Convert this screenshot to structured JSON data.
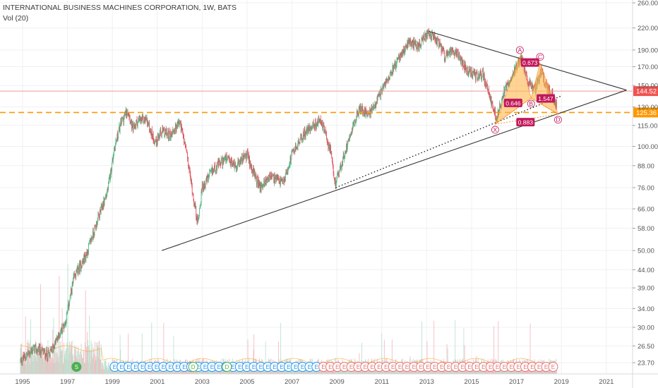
{
  "header": {
    "title": "INTERNATIONAL BUSINESS MACHINES CORPORATION, 1W, BATS",
    "volume_label": "Vol (20)"
  },
  "colors": {
    "up": "#53b987",
    "down": "#eb4d5c",
    "pattern_fill": "#ffb74d",
    "pattern_line": "#f57c00",
    "harmonic_label": "#c2185b",
    "level_orange": "#ff9800",
    "price_tag": "#ef5350",
    "support_line": "#ef9a9a",
    "trendline": "#333333",
    "earnings_badge": "#2196f3",
    "dividend_badge": "#4caf50",
    "earnings_badge_neg": "#e57373"
  },
  "chart_data": {
    "type": "candlestick",
    "scale": "log",
    "x_axis": {
      "ticks": [
        "1995",
        "1997",
        "1999",
        "2001",
        "2003",
        "2005",
        "2007",
        "2009",
        "2011",
        "2013",
        "2015",
        "2017",
        "2019",
        "2021"
      ]
    },
    "y_axis": {
      "ticks": [
        260.0,
        220.0,
        190.0,
        170.0,
        150.0,
        130.0,
        115.0,
        100.0,
        88.0,
        76.0,
        66.0,
        58.0,
        50.0,
        44.0,
        39.0,
        34.0,
        30.0,
        26.5,
        23.7
      ]
    },
    "ylim": [
      22,
      265
    ],
    "price_path": [
      [
        1994.9,
        24
      ],
      [
        1995.5,
        26
      ],
      [
        1996.2,
        25
      ],
      [
        1996.9,
        31
      ],
      [
        1997.3,
        42
      ],
      [
        1997.8,
        48
      ],
      [
        1998.3,
        60
      ],
      [
        1998.8,
        75
      ],
      [
        1999.1,
        100
      ],
      [
        1999.4,
        118
      ],
      [
        1999.7,
        128
      ],
      [
        1999.9,
        112
      ],
      [
        2000.1,
        118
      ],
      [
        2000.5,
        120
      ],
      [
        2000.9,
        103
      ],
      [
        2001.2,
        110
      ],
      [
        2001.6,
        108
      ],
      [
        2002.0,
        118
      ],
      [
        2002.3,
        96
      ],
      [
        2002.6,
        72
      ],
      [
        2002.8,
        60
      ],
      [
        2003.0,
        76
      ],
      [
        2003.5,
        86
      ],
      [
        2004.0,
        92
      ],
      [
        2004.5,
        88
      ],
      [
        2005.0,
        95
      ],
      [
        2005.3,
        83
      ],
      [
        2005.6,
        76
      ],
      [
        2006.0,
        82
      ],
      [
        2006.6,
        78
      ],
      [
        2007.0,
        95
      ],
      [
        2007.5,
        108
      ],
      [
        2007.9,
        115
      ],
      [
        2008.3,
        118
      ],
      [
        2008.7,
        98
      ],
      [
        2008.9,
        78
      ],
      [
        2009.2,
        88
      ],
      [
        2009.6,
        110
      ],
      [
        2010.0,
        128
      ],
      [
        2010.5,
        125
      ],
      [
        2010.9,
        140
      ],
      [
        2011.4,
        165
      ],
      [
        2011.9,
        185
      ],
      [
        2012.2,
        200
      ],
      [
        2012.6,
        195
      ],
      [
        2013.0,
        210
      ],
      [
        2013.4,
        205
      ],
      [
        2013.8,
        182
      ],
      [
        2014.3,
        190
      ],
      [
        2014.8,
        165
      ],
      [
        2015.2,
        160
      ],
      [
        2015.5,
        162
      ],
      [
        2015.8,
        140
      ],
      [
        2016.1,
        120
      ],
      [
        2016.5,
        148
      ],
      [
        2016.9,
        165
      ],
      [
        2017.2,
        180
      ],
      [
        2017.5,
        155
      ],
      [
        2017.8,
        145
      ],
      [
        2018.1,
        165
      ],
      [
        2018.4,
        145
      ],
      [
        2018.6,
        140
      ],
      [
        2018.8,
        130
      ]
    ],
    "last_price": "144.52",
    "levels": [
      {
        "label": "125.36",
        "value": 125.36,
        "style": "dashed"
      },
      {
        "label": "144.52",
        "value": 144.52,
        "style": "solid"
      }
    ],
    "trendlines": [
      {
        "from": [
          2001.2,
          50
        ],
        "to": [
          2021.9,
          145.5
        ]
      },
      {
        "from": [
          2013.1,
          215
        ],
        "to": [
          2021.9,
          145.5
        ]
      }
    ],
    "dotted_trendline": {
      "from": [
        2008.95,
        76
      ],
      "to": [
        2019.0,
        140
      ]
    },
    "harmonic_pattern": {
      "points": [
        {
          "label": "X",
          "x": 2016.05,
          "y": 116
        },
        {
          "label": "A",
          "x": 2017.15,
          "y": 182
        },
        {
          "label": "B",
          "x": 2017.65,
          "y": 138
        },
        {
          "label": "C",
          "x": 2018.05,
          "y": 174
        },
        {
          "label": "D",
          "x": 2018.85,
          "y": 124
        }
      ],
      "ratios": [
        {
          "label": "0.673",
          "x": 2017.6,
          "y": 174
        },
        {
          "label": "0.646",
          "x": 2016.85,
          "y": 133
        },
        {
          "label": "1.547",
          "x": 2018.3,
          "y": 137
        },
        {
          "label": "0.883",
          "x": 2017.4,
          "y": 117
        }
      ]
    },
    "events": [
      {
        "label": "S",
        "x": 1997.4,
        "kind": "split"
      },
      {
        "label": "E",
        "x": 2000.0,
        "kind": "earnings"
      },
      {
        "label": "D",
        "x": 2002.6,
        "kind": "dividend"
      },
      {
        "label": "D",
        "x": 2004.1,
        "kind": "dividend"
      },
      {
        "label": "E",
        "x": 2009.0,
        "kind": "earnings_neg"
      }
    ],
    "events_row": {
      "start": 1999.1,
      "end": 2018.8,
      "step": 0.31,
      "neg_from": 2008.2
    }
  }
}
